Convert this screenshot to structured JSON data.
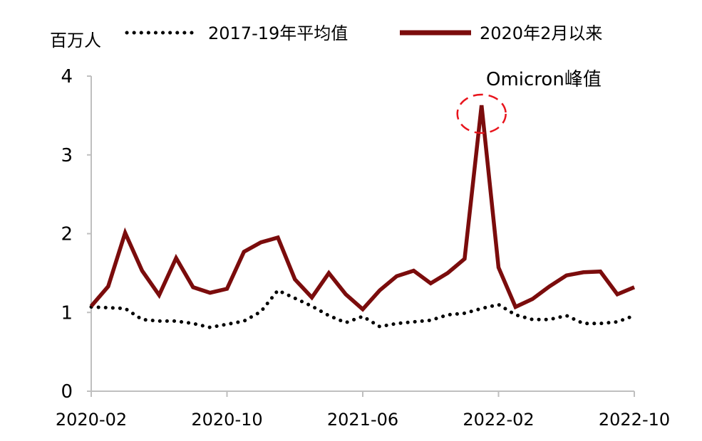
{
  "chart_data": {
    "type": "line",
    "title": "",
    "ylabel": "百万人",
    "xlabel": "",
    "ylim": [
      0,
      4
    ],
    "yticks": [
      "0",
      "1",
      "2",
      "3",
      "4"
    ],
    "xtick_labels": [
      "2020-02",
      "2020-10",
      "2021-06",
      "2022-02",
      "2022-10"
    ],
    "legend_position": "top",
    "grid": false,
    "x": [
      "2020-02",
      "2020-03",
      "2020-04",
      "2020-05",
      "2020-06",
      "2020-07",
      "2020-08",
      "2020-09",
      "2020-10",
      "2020-11",
      "2020-12",
      "2021-01",
      "2021-02",
      "2021-03",
      "2021-04",
      "2021-05",
      "2021-06",
      "2021-07",
      "2021-08",
      "2021-09",
      "2021-10",
      "2021-11",
      "2021-12",
      "2022-01",
      "2022-02",
      "2022-03",
      "2022-04",
      "2022-05",
      "2022-06",
      "2022-07",
      "2022-08",
      "2022-09",
      "2022-10"
    ],
    "series": [
      {
        "name": "2017-19年平均值",
        "style": "dotted",
        "color": "#000000",
        "values": [
          1.07,
          1.06,
          1.05,
          0.91,
          0.89,
          0.89,
          0.86,
          0.81,
          0.85,
          0.89,
          1.01,
          1.28,
          1.18,
          1.08,
          0.96,
          0.87,
          0.95,
          0.82,
          0.86,
          0.88,
          0.9,
          0.97,
          0.99,
          1.05,
          1.1,
          0.97,
          0.91,
          0.91,
          0.96,
          0.86,
          0.86,
          0.88,
          0.96
        ]
      },
      {
        "name": "2020年2月以来",
        "style": "solid",
        "color": "#7b0c0c",
        "values": [
          1.08,
          1.33,
          2.01,
          1.53,
          1.22,
          1.69,
          1.32,
          1.25,
          1.3,
          1.77,
          1.89,
          1.95,
          1.42,
          1.19,
          1.5,
          1.23,
          1.04,
          1.28,
          1.46,
          1.53,
          1.37,
          1.5,
          1.68,
          3.63,
          1.57,
          1.07,
          1.17,
          1.33,
          1.47,
          1.51,
          1.52,
          1.23,
          1.32
        ]
      }
    ],
    "annotations": [
      {
        "text": "Omicron峰值",
        "target_x": "2022-01",
        "target_y": 3.63,
        "marker": "dashed-ellipse",
        "marker_color": "#e8141c"
      }
    ]
  }
}
